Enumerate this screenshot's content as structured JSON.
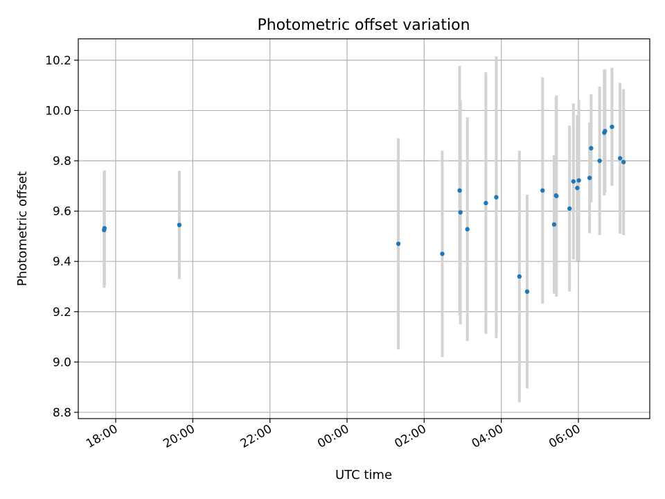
{
  "chart_data": {
    "type": "scatter",
    "title": "Photometric offset variation",
    "xlabel": "UTC time",
    "ylabel": "Photometric offset",
    "x_tick_labels": [
      "18:00",
      "20:00",
      "22:00",
      "00:00",
      "02:00",
      "04:00",
      "06:00"
    ],
    "y_tick_labels": [
      "8.8",
      "9.0",
      "9.2",
      "9.4",
      "9.6",
      "9.8",
      "10.0",
      "10.2"
    ],
    "x_ticks": [
      -6,
      -4,
      -2,
      0,
      2,
      4,
      6
    ],
    "y_ticks": [
      8.8,
      9.0,
      9.2,
      9.4,
      9.6,
      9.8,
      10.0,
      10.2
    ],
    "xlim": [
      -6.97,
      7.85
    ],
    "ylim": [
      8.775,
      10.285
    ],
    "grid": true,
    "colors": {
      "point": "#1f77b4",
      "errorbar": "#d3d3d3",
      "grid": "#b0b0b0"
    },
    "x_unit": "hours relative to 00:00 UTC",
    "points": [
      {
        "t": -6.3,
        "y": 9.525,
        "err": 0.23
      },
      {
        "t": -6.29,
        "y": 9.532,
        "err": 0.23
      },
      {
        "t": -4.35,
        "y": 9.545,
        "err": 0.215
      },
      {
        "t": 1.33,
        "y": 9.47,
        "err": 0.42
      },
      {
        "t": 2.47,
        "y": 9.43,
        "err": 0.41
      },
      {
        "t": 2.92,
        "y": 9.682,
        "err": 0.495
      },
      {
        "t": 2.94,
        "y": 9.595,
        "err": 0.445
      },
      {
        "t": 3.12,
        "y": 9.528,
        "err": 0.445
      },
      {
        "t": 3.6,
        "y": 9.632,
        "err": 0.52
      },
      {
        "t": 3.87,
        "y": 9.655,
        "err": 0.56
      },
      {
        "t": 4.47,
        "y": 9.34,
        "err": 0.5
      },
      {
        "t": 4.67,
        "y": 9.28,
        "err": 0.385
      },
      {
        "t": 5.07,
        "y": 9.682,
        "err": 0.45
      },
      {
        "t": 5.37,
        "y": 9.547,
        "err": 0.275
      },
      {
        "t": 5.42,
        "y": 9.662,
        "err": 0.39
      },
      {
        "t": 5.43,
        "y": 9.66,
        "err": 0.4
      },
      {
        "t": 5.77,
        "y": 9.61,
        "err": 0.33
      },
      {
        "t": 5.87,
        "y": 9.718,
        "err": 0.31
      },
      {
        "t": 5.97,
        "y": 9.692,
        "err": 0.29
      },
      {
        "t": 6.01,
        "y": 9.722,
        "err": 0.32
      },
      {
        "t": 6.29,
        "y": 9.732,
        "err": 0.22
      },
      {
        "t": 6.33,
        "y": 9.85,
        "err": 0.215
      },
      {
        "t": 6.55,
        "y": 9.8,
        "err": 0.295
      },
      {
        "t": 6.67,
        "y": 9.912,
        "err": 0.25
      },
      {
        "t": 6.69,
        "y": 9.918,
        "err": 0.245
      },
      {
        "t": 6.87,
        "y": 9.935,
        "err": 0.235
      },
      {
        "t": 7.08,
        "y": 9.81,
        "err": 0.3
      },
      {
        "t": 7.17,
        "y": 9.795,
        "err": 0.29
      }
    ]
  }
}
